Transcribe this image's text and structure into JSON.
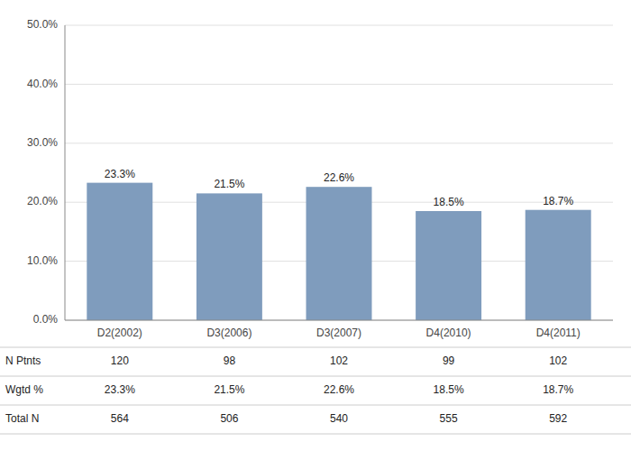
{
  "chart_data": {
    "type": "bar",
    "categories": [
      "D2(2002)",
      "D3(2006)",
      "D3(2007)",
      "D4(2010)",
      "D4(2011)"
    ],
    "values": [
      23.3,
      21.5,
      22.6,
      18.5,
      18.7
    ],
    "value_labels": [
      "23.3%",
      "21.5%",
      "22.6%",
      "18.5%",
      "18.7%"
    ],
    "data_labels": true,
    "color": "#7f9cbd",
    "ylim": [
      0,
      50
    ],
    "yticks": [
      {
        "value": 0,
        "label": "0.0%"
      },
      {
        "value": 10,
        "label": "10.0%"
      },
      {
        "value": 20,
        "label": "20.0%"
      },
      {
        "value": 30,
        "label": "30.0%"
      },
      {
        "value": 40,
        "label": "40.0%"
      },
      {
        "value": 50,
        "label": "50.0%"
      }
    ],
    "grid": true,
    "table": [
      {
        "name": "N Ptnts",
        "values": [
          120,
          98,
          102,
          99,
          102
        ]
      },
      {
        "name": "Wgtd %",
        "values": [
          23.3,
          21.5,
          22.6,
          18.5,
          18.7
        ],
        "value_labels": [
          "23.3%",
          "21.5%",
          "22.6%",
          "18.5%",
          "18.7%"
        ]
      },
      {
        "name": "Total N",
        "values": [
          564,
          506,
          540,
          555,
          592
        ]
      }
    ]
  }
}
